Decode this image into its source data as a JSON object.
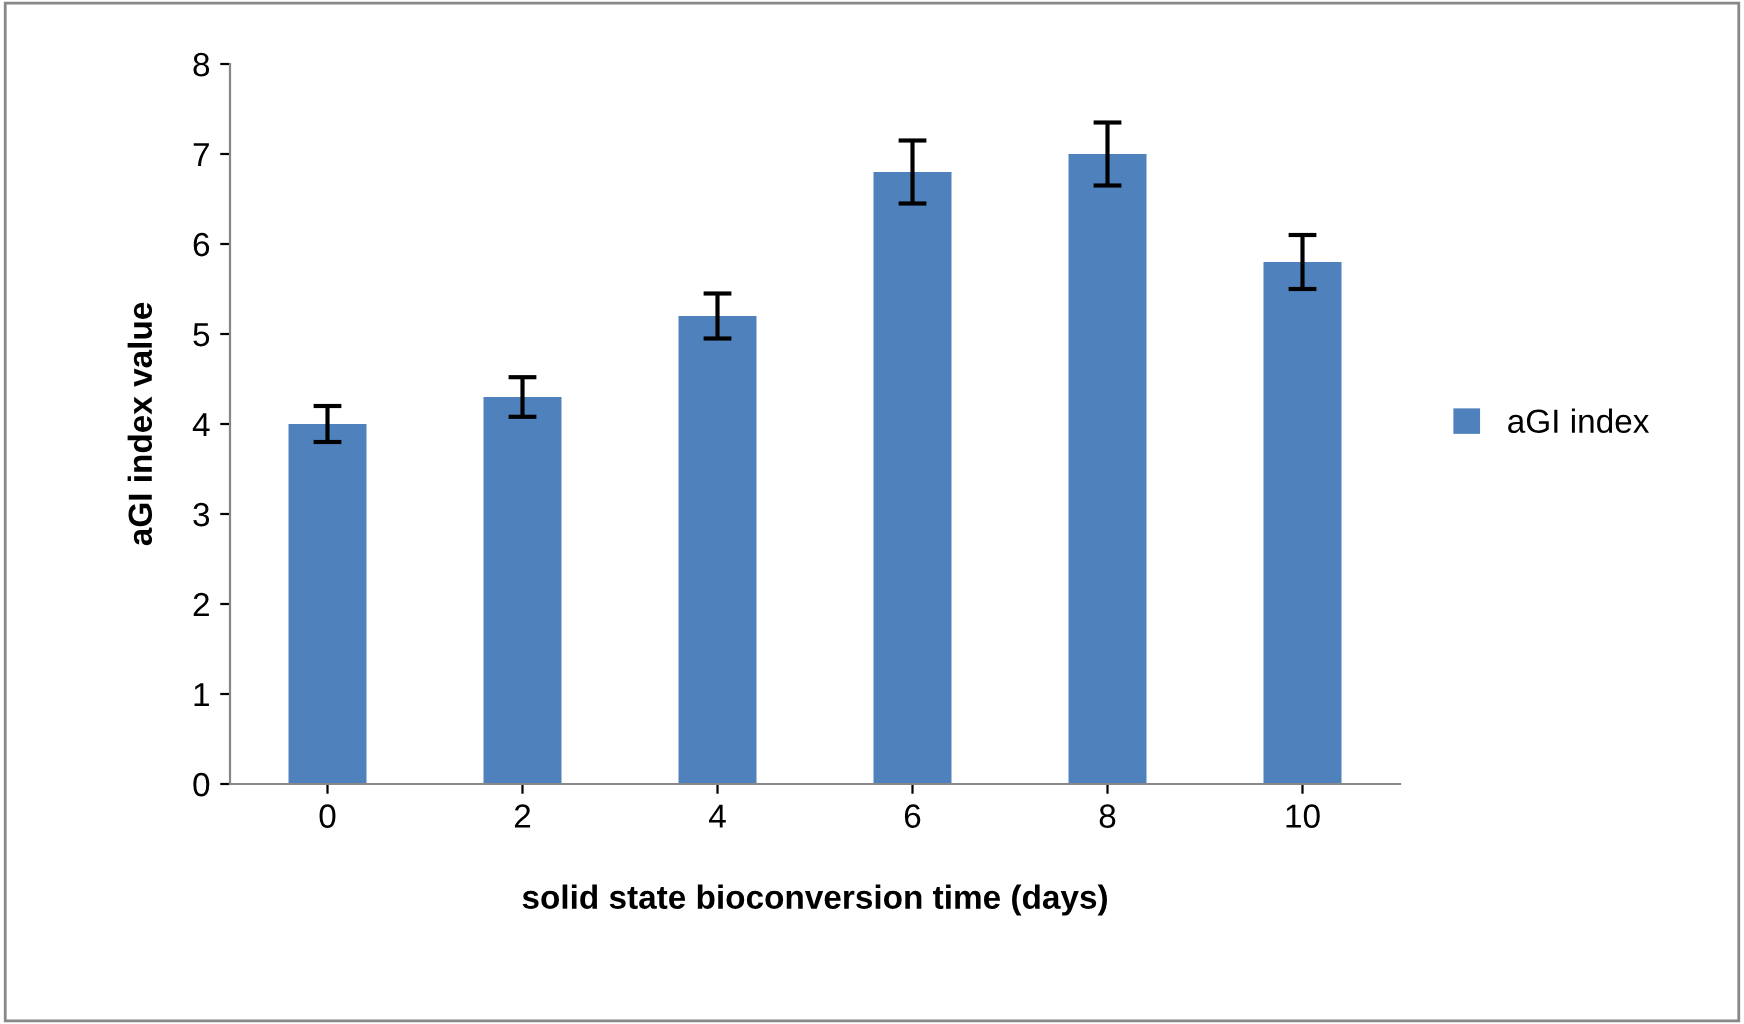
{
  "chart_data": {
    "type": "bar",
    "xlabel": "solid state bioconversion time (days)",
    "ylabel": "aGI index value",
    "categories": [
      "0",
      "2",
      "4",
      "6",
      "8",
      "10"
    ],
    "series": [
      {
        "name": "aGI index",
        "color": "#4f81bd",
        "values": [
          4.0,
          4.3,
          5.2,
          6.8,
          7.0,
          5.8
        ],
        "errors": [
          0.2,
          0.22,
          0.25,
          0.35,
          0.35,
          0.3
        ]
      }
    ],
    "ylim": [
      0,
      8
    ],
    "yticks": [
      0,
      1,
      2,
      3,
      4,
      5,
      6,
      7,
      8
    ],
    "grid": false,
    "legend": "right"
  }
}
